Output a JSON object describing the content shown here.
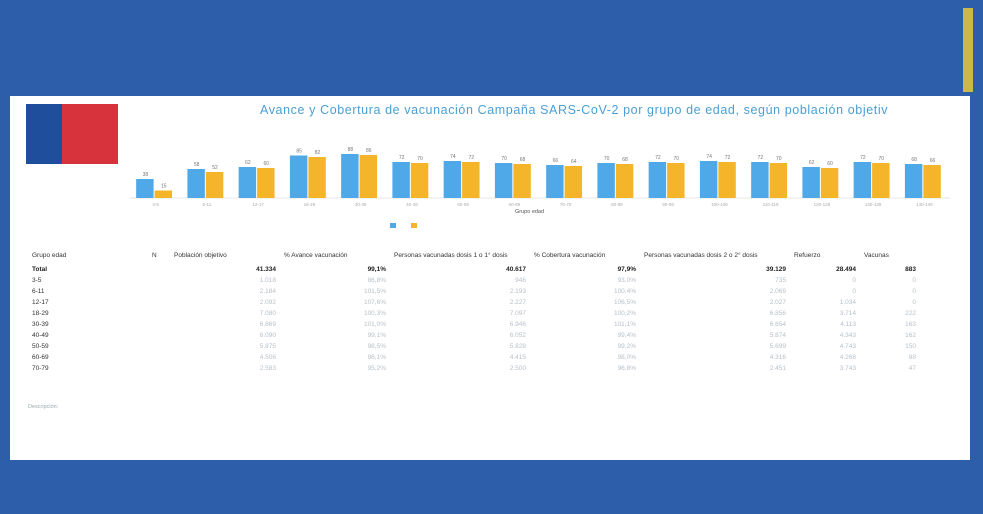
{
  "header": {
    "title": "Avance y Cobertura de vacunación Campaña SARS-CoV-2  por grupo de edad, según población objetiv",
    "subtitle": "",
    "logo_text": ""
  },
  "colors": {
    "band": "#2c5ea9",
    "series_1": "#4fa8e8",
    "series_2": "#f5b52a",
    "title": "#4a9fd6"
  },
  "chart_data": {
    "type": "bar",
    "xlabel": "Grupo edad",
    "categories": [
      "3-5",
      "6-11",
      "12-17",
      "18-29",
      "30-39",
      "40-49",
      "50-59",
      "60-69",
      "70-79",
      "80-89",
      "90-99",
      "100-109",
      "110-119",
      "120-129",
      "130-139",
      "140-149"
    ],
    "series": [
      {
        "name": "",
        "values": [
          38,
          58,
          62,
          85,
          88,
          72,
          74,
          70,
          66,
          70,
          72,
          74,
          72,
          62,
          72,
          68
        ]
      },
      {
        "name": "",
        "values": [
          15,
          52,
          60,
          82,
          86,
          70,
          72,
          68,
          64,
          68,
          70,
          72,
          70,
          60,
          70,
          66
        ]
      }
    ],
    "ylim": [
      0,
      100
    ],
    "grid": false,
    "legend_position": "bottom"
  },
  "table": {
    "columns": [
      "Grupo edad",
      "N",
      "Población objetivo",
      "% Avance vacunación",
      "Personas vacunadas dosis 1 o 1° dosis",
      "% Cobertura vacunación",
      "Personas vacunadas dosis 2 o 2° dosis",
      "Refuerzo",
      "Vacunas"
    ],
    "rows": [
      {
        "group": "Total",
        "n": "",
        "pop": "41.334",
        "adv": "99,1%",
        "d1": "40.617",
        "cov": "97,9%",
        "d2": "39.129",
        "ref": "28.494",
        "vac": "883",
        "total": true
      },
      {
        "group": "3-5",
        "n": "",
        "pop": "1.018",
        "adv": "86,8%",
        "d1": "946",
        "cov": "93,0%",
        "d2": "735",
        "ref": "0",
        "vac": "0"
      },
      {
        "group": "6-11",
        "n": "",
        "pop": "2.184",
        "adv": "101,5%",
        "d1": "2.193",
        "cov": "100,4%",
        "d2": "2.069",
        "ref": "0",
        "vac": "0"
      },
      {
        "group": "12-17",
        "n": "",
        "pop": "2.092",
        "adv": "107,6%",
        "d1": "2.227",
        "cov": "106,5%",
        "d2": "2.027",
        "ref": "1.034",
        "vac": "0"
      },
      {
        "group": "18-29",
        "n": "",
        "pop": "7.080",
        "adv": "100,3%",
        "d1": "7.097",
        "cov": "100,2%",
        "d2": "6.856",
        "ref": "3.714",
        "vac": "222"
      },
      {
        "group": "30-39",
        "n": "",
        "pop": "6.869",
        "adv": "101,0%",
        "d1": "6.946",
        "cov": "101,1%",
        "d2": "6.654",
        "ref": "4.113",
        "vac": "163"
      },
      {
        "group": "40-49",
        "n": "",
        "pop": "6.090",
        "adv": "99,1%",
        "d1": "6.052",
        "cov": "99,4%",
        "d2": "5.874",
        "ref": "4.343",
        "vac": "162"
      },
      {
        "group": "50-59",
        "n": "",
        "pop": "5.875",
        "adv": "98,5%",
        "d1": "5.828",
        "cov": "99,2%",
        "d2": "5.699",
        "ref": "4.743",
        "vac": "150"
      },
      {
        "group": "60-69",
        "n": "",
        "pop": "4.506",
        "adv": "96,1%",
        "d1": "4.415",
        "cov": "98,0%",
        "d2": "4.316",
        "ref": "4.268",
        "vac": "88"
      },
      {
        "group": "70-79",
        "n": "",
        "pop": "2.583",
        "adv": "95,2%",
        "d1": "2.500",
        "cov": "96,8%",
        "d2": "2.451",
        "ref": "3.743",
        "vac": "47"
      }
    ]
  },
  "notes": {
    "heading": "Descripción:",
    "lines": [
      "",
      "",
      "",
      ""
    ]
  }
}
